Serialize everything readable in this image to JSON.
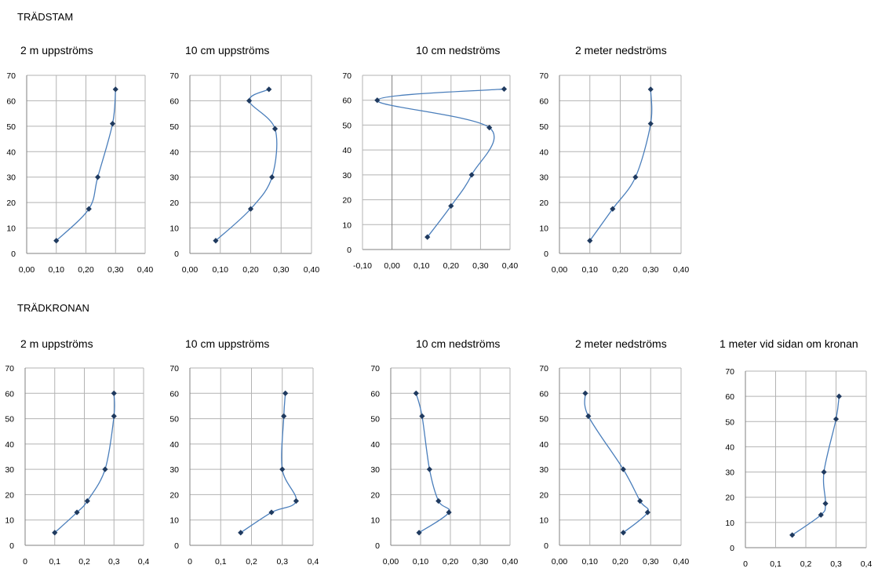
{
  "sections": [
    {
      "title": "TRÄDSTAM"
    },
    {
      "title": "TRÄDKRONAN"
    }
  ],
  "colors": {
    "line": "#4a7ebb",
    "marker": "#1f3a5f",
    "grid": "#b3b3b3",
    "axis": "#808080"
  },
  "chart_data": [
    {
      "type": "line",
      "title": "2 m uppströms",
      "xlim": [
        0,
        0.4
      ],
      "ylim": [
        0,
        70
      ],
      "xticks": [
        "0,00",
        "0,10",
        "0,20",
        "0,30",
        "0,40"
      ],
      "yticks": [
        "0",
        "10",
        "20",
        "30",
        "40",
        "50",
        "60",
        "70"
      ],
      "points": [
        [
          0.1,
          5
        ],
        [
          0.21,
          17.5
        ],
        [
          0.24,
          30
        ],
        [
          0.29,
          51
        ],
        [
          0.3,
          64.5
        ]
      ],
      "grid": true
    },
    {
      "type": "line",
      "title": "10 cm uppströms",
      "xlim": [
        0,
        0.4
      ],
      "ylim": [
        0,
        70
      ],
      "xticks": [
        "0,00",
        "0,10",
        "0,20",
        "0,30",
        "0,40"
      ],
      "yticks": [
        "0",
        "10",
        "20",
        "30",
        "40",
        "50",
        "60",
        "70"
      ],
      "points": [
        [
          0.085,
          5
        ],
        [
          0.2,
          17.5
        ],
        [
          0.27,
          30
        ],
        [
          0.28,
          49
        ],
        [
          0.195,
          60
        ],
        [
          0.26,
          64.5
        ]
      ],
      "grid": true
    },
    {
      "type": "line",
      "title": "10 cm nedströms",
      "xlim": [
        -0.1,
        0.4
      ],
      "ylim": [
        0,
        70
      ],
      "xticks": [
        "-0,10",
        "0,00",
        "0,10",
        "0,20",
        "0,30",
        "0,40"
      ],
      "yticks": [
        "0",
        "10",
        "20",
        "30",
        "40",
        "50",
        "60",
        "70"
      ],
      "points": [
        [
          0.12,
          5
        ],
        [
          0.2,
          17.5
        ],
        [
          0.27,
          30
        ],
        [
          0.33,
          49
        ],
        [
          -0.05,
          60
        ],
        [
          0.38,
          64.5
        ]
      ],
      "grid": true
    },
    {
      "type": "line",
      "title": "2 meter nedströms",
      "xlim": [
        0,
        0.4
      ],
      "ylim": [
        0,
        70
      ],
      "xticks": [
        "0,00",
        "0,10",
        "0,20",
        "0,30",
        "0,40"
      ],
      "yticks": [
        "0",
        "10",
        "20",
        "30",
        "40",
        "50",
        "60",
        "70"
      ],
      "points": [
        [
          0.1,
          5
        ],
        [
          0.175,
          17.5
        ],
        [
          0.25,
          30
        ],
        [
          0.3,
          51
        ],
        [
          0.3,
          64.5
        ]
      ],
      "grid": true
    },
    {
      "type": "line",
      "title": "2 m uppströms",
      "xlim": [
        0,
        0.4
      ],
      "ylim": [
        0,
        70
      ],
      "xticks": [
        "0",
        "0,1",
        "0,2",
        "0,3",
        "0,4"
      ],
      "yticks": [
        "0",
        "10",
        "20",
        "30",
        "40",
        "50",
        "60",
        "70"
      ],
      "points": [
        [
          0.1,
          5
        ],
        [
          0.175,
          13
        ],
        [
          0.21,
          17.5
        ],
        [
          0.27,
          30
        ],
        [
          0.3,
          51
        ],
        [
          0.3,
          60
        ]
      ],
      "grid": true
    },
    {
      "type": "line",
      "title": "10 cm uppströms",
      "xlim": [
        0,
        0.4
      ],
      "ylim": [
        0,
        70
      ],
      "xticks": [
        "0",
        "0,1",
        "0,2",
        "0,3",
        "0,4"
      ],
      "yticks": [
        "0",
        "10",
        "20",
        "30",
        "40",
        "50",
        "60",
        "70"
      ],
      "points": [
        [
          0.165,
          5
        ],
        [
          0.265,
          13
        ],
        [
          0.345,
          17.5
        ],
        [
          0.3,
          30
        ],
        [
          0.305,
          51
        ],
        [
          0.31,
          60
        ]
      ],
      "grid": true
    },
    {
      "type": "line",
      "title": "10 cm nedströms",
      "xlim": [
        0,
        0.4
      ],
      "ylim": [
        0,
        70
      ],
      "xticks": [
        "0,00",
        "0,10",
        "0,20",
        "0,30",
        "0,40"
      ],
      "yticks": [
        "0",
        "10",
        "20",
        "30",
        "40",
        "50",
        "60",
        "70"
      ],
      "points": [
        [
          0.095,
          5
        ],
        [
          0.195,
          13
        ],
        [
          0.16,
          17.5
        ],
        [
          0.13,
          30
        ],
        [
          0.105,
          51
        ],
        [
          0.085,
          60
        ]
      ],
      "grid": true
    },
    {
      "type": "line",
      "title": "2 meter nedströms",
      "xlim": [
        0,
        0.4
      ],
      "ylim": [
        0,
        70
      ],
      "xticks": [
        "0,00",
        "0,10",
        "0,20",
        "0,30",
        "0,40"
      ],
      "yticks": [
        "0",
        "10",
        "20",
        "30",
        "40",
        "50",
        "60",
        "70"
      ],
      "points": [
        [
          0.21,
          5
        ],
        [
          0.29,
          13
        ],
        [
          0.265,
          17.5
        ],
        [
          0.21,
          30
        ],
        [
          0.095,
          51
        ],
        [
          0.085,
          60
        ]
      ],
      "grid": true
    },
    {
      "type": "line",
      "title": "1 meter vid sidan om kronan",
      "xlim": [
        0,
        0.4
      ],
      "ylim": [
        0,
        70
      ],
      "xticks": [
        "0",
        "0,1",
        "0,2",
        "0,3",
        "0,4"
      ],
      "yticks": [
        "0",
        "10",
        "20",
        "30",
        "40",
        "50",
        "60",
        "70"
      ],
      "points": [
        [
          0.155,
          5
        ],
        [
          0.25,
          13
        ],
        [
          0.265,
          17.5
        ],
        [
          0.26,
          30
        ],
        [
          0.3,
          51
        ],
        [
          0.31,
          60
        ]
      ],
      "grid": true
    }
  ]
}
